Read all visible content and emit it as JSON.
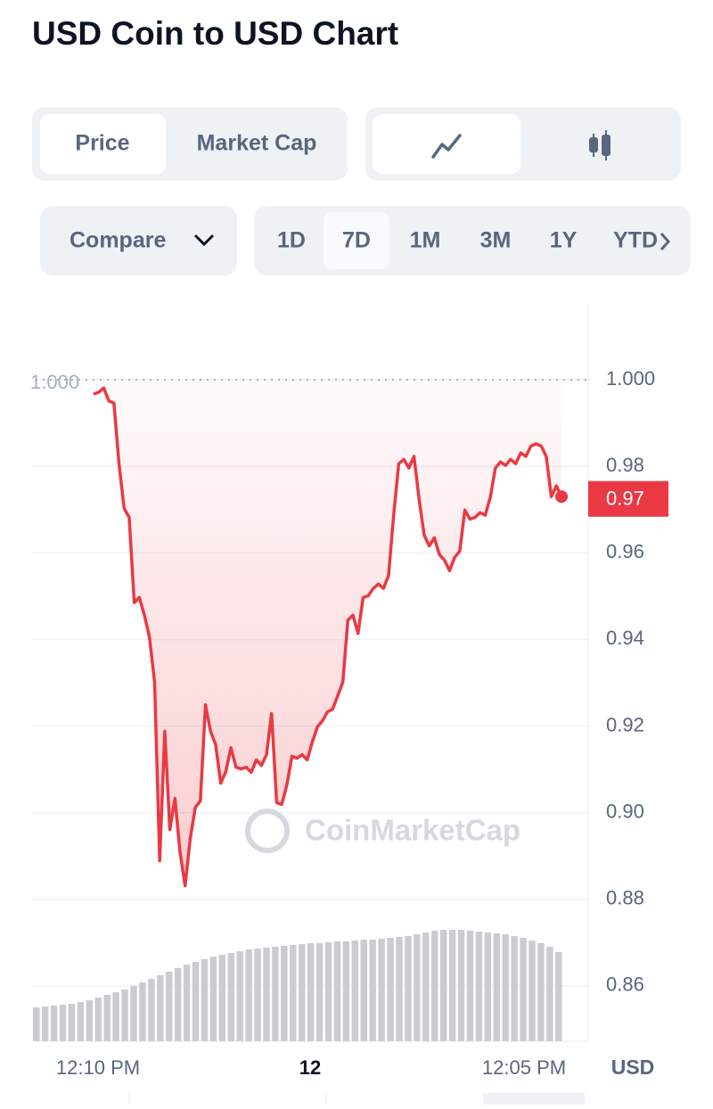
{
  "header": {
    "title": "USD Coin to USD Chart"
  },
  "controls": {
    "metric_tabs": [
      "Price",
      "Market Cap"
    ],
    "compare": "Compare",
    "ranges": [
      "1D",
      "7D",
      "1M",
      "3M",
      "1Y",
      "YTD"
    ],
    "selected_range": "7D"
  },
  "chart_data": {
    "type": "line",
    "series": [
      {
        "name": "Price",
        "color": "#ea3943",
        "values": [
          0.9967,
          0.9971,
          0.9981,
          0.9951,
          0.9946,
          0.9806,
          0.9703,
          0.9682,
          0.9485,
          0.9497,
          0.9456,
          0.9404,
          0.9301,
          0.8889,
          0.9188,
          0.8961,
          0.9033,
          0.8909,
          0.8831,
          0.894,
          0.9012,
          0.9027,
          0.9249,
          0.9188,
          0.9157,
          0.9068,
          0.9095,
          0.915,
          0.9105,
          0.9101,
          0.9105,
          0.9093,
          0.9122,
          0.9109,
          0.9134,
          0.9229,
          0.9023,
          0.9019,
          0.9064,
          0.913,
          0.9126,
          0.9134,
          0.9122,
          0.9163,
          0.9198,
          0.9212,
          0.9233,
          0.9239,
          0.927,
          0.9301,
          0.9445,
          0.9456,
          0.9414,
          0.9497,
          0.9501,
          0.9518,
          0.9528,
          0.9518,
          0.9548,
          0.9687,
          0.9806,
          0.9816,
          0.9796,
          0.9823,
          0.9724,
          0.9641,
          0.9616,
          0.9635,
          0.9596,
          0.9583,
          0.9559,
          0.959,
          0.9604,
          0.9699,
          0.9678,
          0.9682,
          0.9693,
          0.9687,
          0.9728,
          0.9796,
          0.981,
          0.9802,
          0.9816,
          0.9806,
          0.9831,
          0.9823,
          0.9847,
          0.9852,
          0.9847,
          0.9823,
          0.973,
          0.9755,
          0.973
        ]
      }
    ],
    "volume": {
      "color": "#c9ccd1",
      "values": [
        38,
        39,
        40,
        41,
        42,
        44,
        46,
        49,
        52,
        55,
        58,
        62,
        66,
        70,
        74,
        78,
        82,
        86,
        89,
        92,
        95,
        97,
        99,
        101,
        103,
        104,
        105,
        106,
        107,
        108,
        109,
        110,
        110,
        111,
        112,
        112,
        113,
        114,
        114,
        115,
        116,
        117,
        118,
        120,
        122,
        124,
        125,
        125,
        125,
        124,
        123,
        122,
        121,
        120,
        118,
        116,
        113,
        110,
        106,
        100
      ]
    },
    "ylim": [
      0.8472,
      1.0177
    ],
    "yticks": [
      0.86,
      0.88,
      {
        "value": 0.9,
        "label": "0.90"
      },
      0.92,
      0.94,
      0.96,
      0.98,
      {
        "value": 1,
        "label": "1.000"
      }
    ],
    "reference_line": {
      "value": 1,
      "label": "1.000"
    },
    "current_price": 0.97,
    "x_labels": [
      "12:10 PM",
      "12",
      "12:05 PM"
    ],
    "currency": "USD",
    "watermark": "CoinMarketCap",
    "grid": true
  }
}
